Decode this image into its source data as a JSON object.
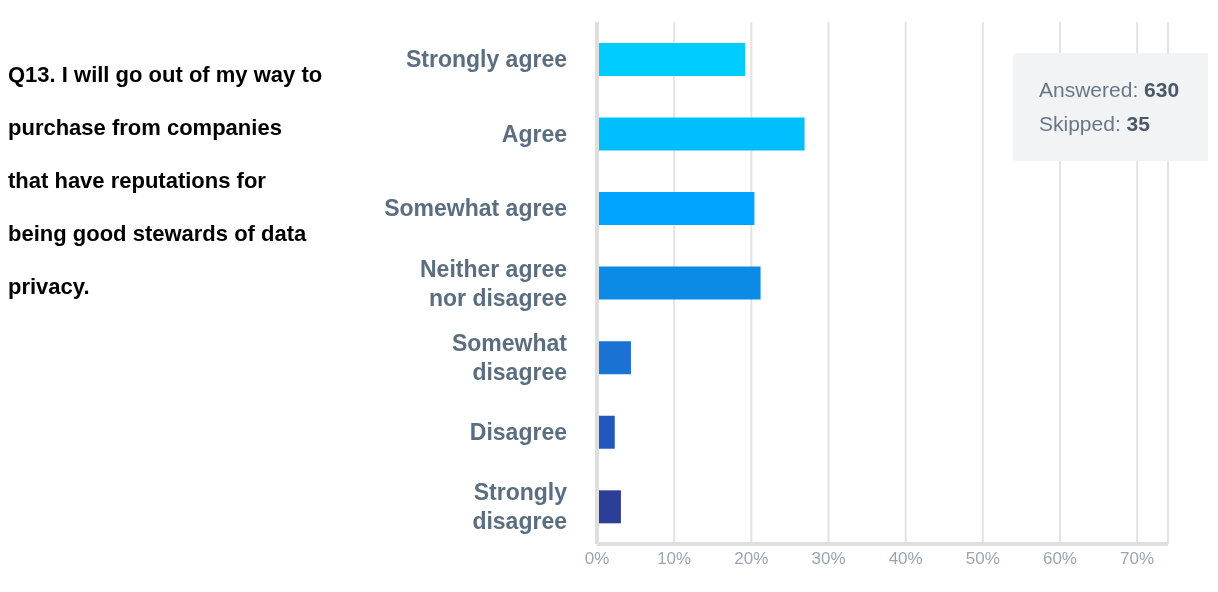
{
  "chart_data": {
    "type": "bar",
    "orientation": "horizontal",
    "title": "Q13.  I will go out of my way to purchase from companies that have reputations for being good stewards of data privacy.",
    "categories": [
      "Strongly agree",
      "Agree",
      "Somewhat agree",
      "Neither agree nor disagree",
      "Somewhat disagree",
      "Disagree",
      "Strongly disagree"
    ],
    "values": [
      19.2,
      26.9,
      20.4,
      21.2,
      4.4,
      2.3,
      3.1
    ],
    "colors": [
      "#00ccff",
      "#00bfff",
      "#00a3ff",
      "#0b8be6",
      "#1a72d2",
      "#2257be",
      "#2b3f96"
    ],
    "xlim": [
      0,
      74
    ],
    "xticks": [
      {
        "value": 0,
        "label": "0%"
      },
      {
        "value": 10,
        "label": "10%"
      },
      {
        "value": 20,
        "label": "20%"
      },
      {
        "value": 30,
        "label": "30%"
      },
      {
        "value": 40,
        "label": "40%"
      },
      {
        "value": 50,
        "label": "50%"
      },
      {
        "value": 60,
        "label": "60%"
      },
      {
        "value": 70,
        "label": "70%"
      }
    ],
    "grid": "x",
    "annotations": [
      "Answered: 630",
      "Skipped: 35"
    ]
  }
}
